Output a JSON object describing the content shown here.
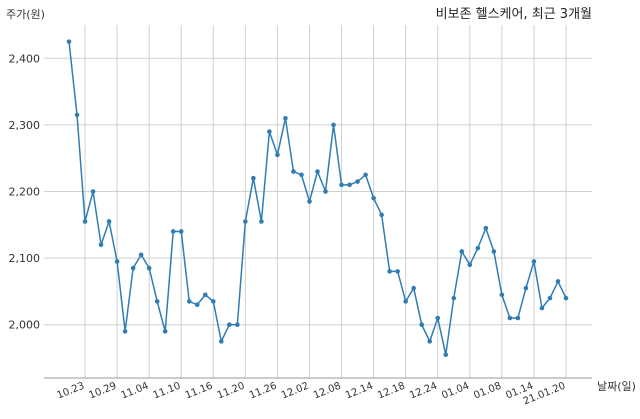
{
  "chart_data": {
    "type": "line",
    "title": "비보존 헬스케어, 최근 3개월",
    "ylabel": "주가(원)",
    "xlabel": "날짜(일)",
    "ylim": [
      1920,
      2450
    ],
    "yticks": [
      2000,
      2100,
      2200,
      2300,
      2400
    ],
    "ytick_labels": [
      "2,000",
      "2,100",
      "2,200",
      "2,300",
      "2,400"
    ],
    "xtick_labels": [
      "10.23",
      "10.29",
      "11.04",
      "11.10",
      "11.16",
      "11.20",
      "11.26",
      "12.02",
      "12.08",
      "12.14",
      "12.18",
      "12.24",
      "01.04",
      "01.08",
      "01.14",
      "21.01.20"
    ],
    "xtick_index": [
      2,
      6,
      10,
      14,
      18,
      22,
      26,
      30,
      34,
      38,
      42,
      46,
      50,
      54,
      58,
      62
    ],
    "grid": true,
    "series": [
      {
        "color": "#2f7db3",
        "values": [
          2425,
          2315,
          2155,
          2200,
          2120,
          2155,
          2095,
          1990,
          2085,
          2105,
          2085,
          2035,
          1990,
          2140,
          2140,
          2035,
          2030,
          2045,
          2035,
          1975,
          2000,
          2000,
          2155,
          2220,
          2155,
          2290,
          2255,
          2310,
          2230,
          2225,
          2185,
          2230,
          2200,
          2300,
          2210,
          2210,
          2215,
          2225,
          2190,
          2165,
          2080,
          2080,
          2035,
          2055,
          2000,
          1975,
          2010,
          1955,
          2040,
          2110,
          2090,
          2115,
          2145,
          2110,
          2045,
          2010,
          2010,
          2055,
          2095,
          2025,
          2040,
          2065,
          2040
        ]
      }
    ]
  }
}
